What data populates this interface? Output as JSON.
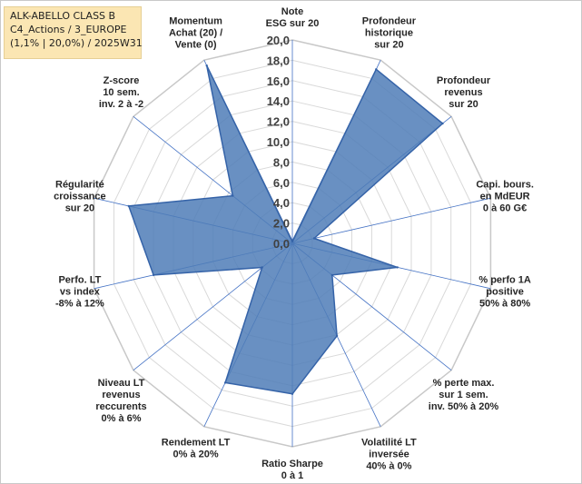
{
  "title_box": {
    "line1": "ALK-ABELLO CLASS B",
    "line2": "C4_Actions / 3_EUROPE",
    "line3": "(1,1% | 20,0%) / 2025W31"
  },
  "colors": {
    "fill": "#4f7db7",
    "stroke": "#3563a8",
    "grid": "#d9d9d9",
    "spoke": "#4472c4",
    "title_bg": "#fbe6b3"
  },
  "chart_data": {
    "type": "radar",
    "rmax": 20,
    "ticks": [
      "0,0",
      "2,0",
      "4,0",
      "6,0",
      "8,0",
      "10,0",
      "12,0",
      "14,0",
      "16,0",
      "18,0",
      "20,0"
    ],
    "axes": [
      {
        "lines": [
          "Note",
          "ESG sur 20"
        ],
        "value": 0.2
      },
      {
        "lines": [
          "Profondeur",
          "historique",
          "sur 20"
        ],
        "value": 19.0
      },
      {
        "lines": [
          "Profondeur",
          "revenus",
          "sur 20"
        ],
        "value": 18.9
      },
      {
        "lines": [
          "Capi. bours.",
          "en MdEUR",
          "0 à 60 G€"
        ],
        "value": 2.2
      },
      {
        "lines": [
          "% perfo 1A",
          "positive",
          "50% à 80%"
        ],
        "value": 10.6
      },
      {
        "lines": [
          "% perte max.",
          "sur 1 sem.",
          "inv. 50% à 20%"
        ],
        "value": 5.0
      },
      {
        "lines": [
          "Volatilité LT",
          "inversée",
          "40% à 0%"
        ],
        "value": 10.1
      },
      {
        "lines": [
          "Ratio Sharpe",
          "0 à 1"
        ],
        "value": 14.8
      },
      {
        "lines": [
          "Rendement LT",
          "0% à 20%"
        ],
        "value": 15.2
      },
      {
        "lines": [
          "Niveau LT",
          "revenus",
          "reccurents",
          "0% à 6%"
        ],
        "value": 3.8
      },
      {
        "lines": [
          "Perfo. LT",
          "vs index",
          "-8% à 12%"
        ],
        "value": 14.0
      },
      {
        "lines": [
          "Régularité",
          "croissance",
          "sur 20"
        ],
        "value": 16.5
      },
      {
        "lines": [
          "Z-score",
          "10 sem.",
          "inv. 2 à -2"
        ],
        "value": 7.5
      },
      {
        "lines": [
          "Momentum",
          "Achat (20) /",
          "Vente (0)"
        ],
        "value": 19.4
      }
    ]
  }
}
